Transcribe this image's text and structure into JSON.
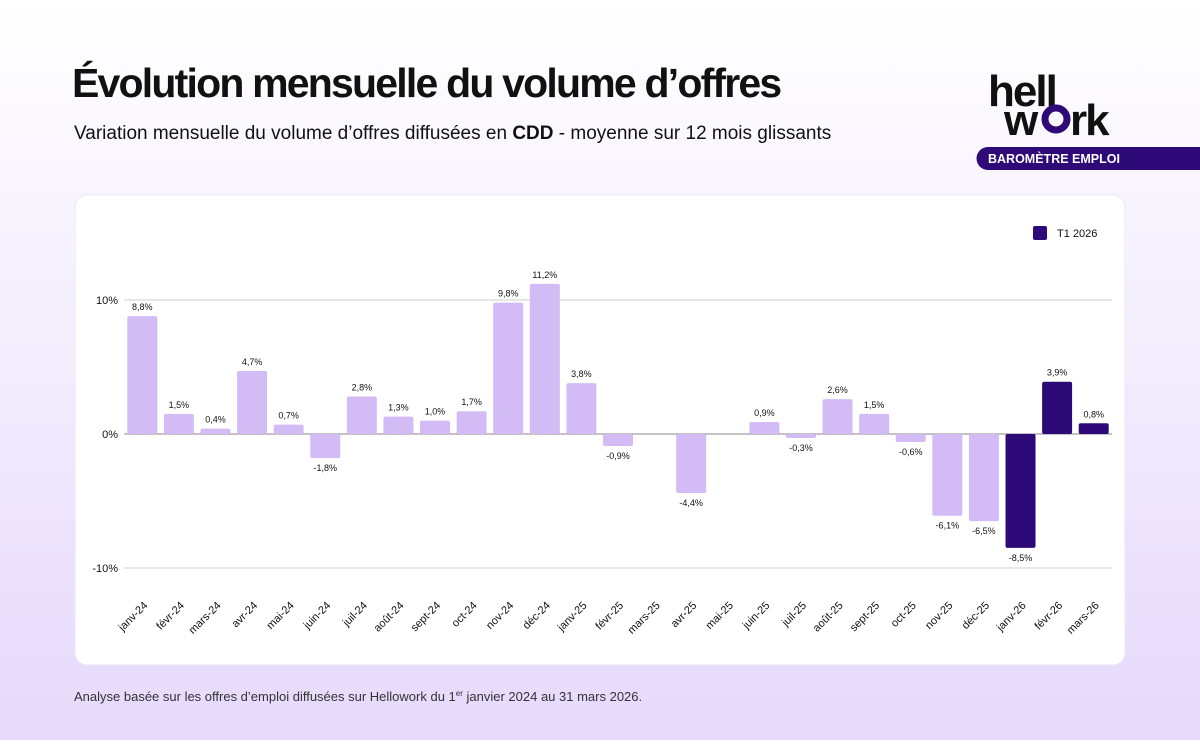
{
  "chart_data": {
    "type": "bar",
    "title": "Évolution mensuelle du volume d’offres",
    "subtitle": [
      "Variation mensuelle du volume d’offres diffusées en ",
      "CDD",
      " - moyenne sur 12 mois glissants"
    ],
    "brand": {
      "line1": "hell",
      "line2a": "w",
      "line2b": "rk",
      "tag": "BAROMÈTRE EMPLOI"
    },
    "footnote": [
      "Analyse basée sur les offres d’emploi diffusées sur Hellowork du 1",
      "er",
      " janvier 2024 au 31 mars 2026."
    ],
    "categories": [
      "janv-24",
      "févr-24",
      "mars-24",
      "avr-24",
      "mai-24",
      "juin-24",
      "juil-24",
      "août-24",
      "sept-24",
      "oct-24",
      "nov-24",
      "déc-24",
      "janv-25",
      "févr-25",
      "mars-25",
      "avr-25",
      "mai-25",
      "juin-25",
      "juil-25",
      "août-25",
      "sept-25",
      "oct-25",
      "nov-25",
      "déc-25",
      "janv-26",
      "févr-26",
      "mars-26"
    ],
    "values": [
      8.8,
      1.5,
      0.4,
      4.7,
      0.7,
      -1.8,
      2.8,
      1.3,
      1.0,
      1.7,
      9.8,
      11.2,
      3.8,
      -0.9,
      null,
      -4.4,
      null,
      0.9,
      -0.3,
      2.6,
      1.5,
      -0.6,
      -6.1,
      -6.5,
      -8.5,
      3.9,
      0.8
    ],
    "value_labels": [
      "8,8%",
      "1,5%",
      "0,4%",
      "4,7%",
      "0,7%",
      "-1,8%",
      "2,8%",
      "1,3%",
      "1,0%",
      "1,7%",
      "9,8%",
      "11,2%",
      "3,8%",
      "-0,9%",
      null,
      "-4,4%",
      null,
      "0,9%",
      "-0,3%",
      "2,6%",
      "1,5%",
      "-0,6%",
      "-6,1%",
      "-6,5%",
      "-8,5%",
      "3,9%",
      "0,8%"
    ],
    "colors": [
      "#d3bcf6",
      "#d3bcf6",
      "#d3bcf6",
      "#d3bcf6",
      "#d3bcf6",
      "#d3bcf6",
      "#d3bcf6",
      "#d3bcf6",
      "#d3bcf6",
      "#d3bcf6",
      "#d3bcf6",
      "#d3bcf6",
      "#d3bcf6",
      "#d3bcf6",
      "#d3bcf6",
      "#d3bcf6",
      "#d3bcf6",
      "#d3bcf6",
      "#d3bcf6",
      "#d3bcf6",
      "#d3bcf6",
      "#d3bcf6",
      "#d3bcf6",
      "#d3bcf6",
      "#2e0a78",
      "#2e0a78",
      "#2e0a78"
    ],
    "legend": {
      "label": "T1 2026",
      "color": "#2e0a78",
      "position": "top-right"
    },
    "ylim": [
      -12,
      13
    ],
    "yticks": [
      {
        "value": -10,
        "label": "-10%"
      },
      {
        "value": 0,
        "label": "0%"
      },
      {
        "value": 10,
        "label": "10%"
      }
    ],
    "grid": true
  }
}
